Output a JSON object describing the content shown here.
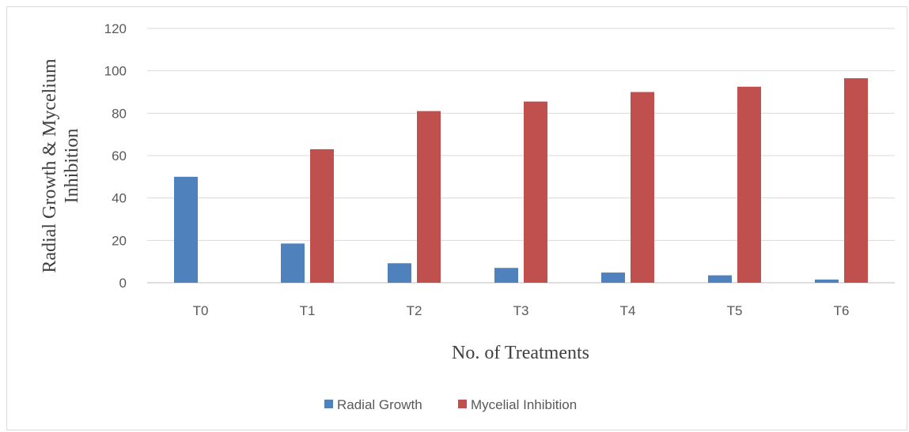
{
  "chart_data": {
    "type": "bar",
    "title": "",
    "xlabel": "No. of Treatments",
    "ylabel_lines": [
      "Radial Growth & Mycelium",
      "Inhibition"
    ],
    "categories": [
      "T0",
      "T1",
      "T2",
      "T3",
      "T4",
      "T5",
      "T6"
    ],
    "ylim": [
      0,
      120
    ],
    "yticks": [
      0,
      20,
      40,
      60,
      80,
      100,
      120
    ],
    "grid": true,
    "legend_position": "bottom",
    "series": [
      {
        "name": "Radial Growth",
        "color": "#4f81bd",
        "values": [
          50,
          18.5,
          9.2,
          7.0,
          4.8,
          3.5,
          1.5
        ]
      },
      {
        "name": "Mycelial Inhibition",
        "color": "#c0504d",
        "values": [
          0,
          63,
          81,
          85.5,
          90,
          92.5,
          96.5
        ]
      }
    ]
  }
}
